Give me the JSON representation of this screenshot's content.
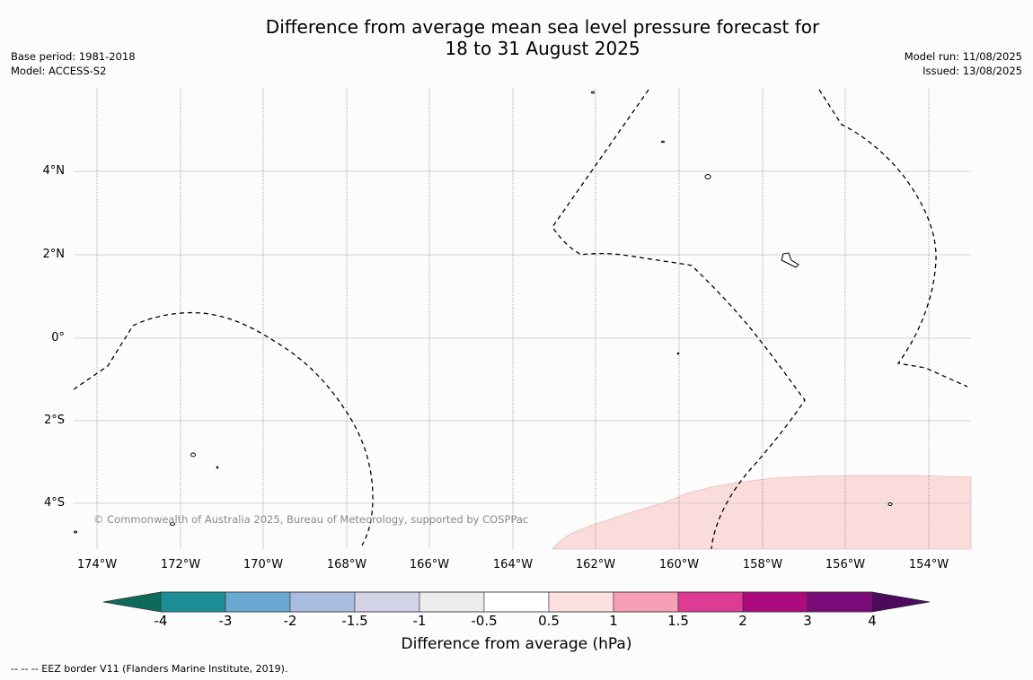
{
  "title": {
    "line1": "Difference from average mean sea level pressure forecast for",
    "line2": "18 to 31 August 2025"
  },
  "meta": {
    "base_period": "Base period: 1981-2018",
    "model": "Model: ACCESS-S2",
    "model_run": "Model run: 11/08/2025",
    "issued": "Issued: 13/08/2025"
  },
  "map": {
    "copyright": "© Commonwealth of Australia 2025, Bureau of Meteorology, supported by COSPPac",
    "lat_labels": [
      "4°N",
      "2°N",
      "0°",
      "2°S",
      "4°S"
    ],
    "lon_labels": [
      "174°W",
      "172°W",
      "170°W",
      "168°W",
      "166°W",
      "164°W",
      "162°W",
      "160°W",
      "158°W",
      "156°W",
      "154°W"
    ],
    "anomaly_fill_color": "#fadcdb",
    "anomaly_category": "0.5 to 1"
  },
  "colorbar": {
    "title": "Difference from average (hPa)",
    "ticks": [
      "-4",
      "-3",
      "-2",
      "-1.5",
      "-1",
      "-0.5",
      "0.5",
      "1",
      "1.5",
      "2",
      "3",
      "4"
    ],
    "colors": [
      "#0e6b5b",
      "#1b8e96",
      "#6aa9d1",
      "#a9bde0",
      "#d3d3e8",
      "#ececec",
      "#ffffff",
      "#fde1e0",
      "#f59fb6",
      "#de3b95",
      "#ad0a7d",
      "#7a0b78",
      "#4b0a5b"
    ]
  },
  "footnote": "--  --  -- EEZ border V11 (Flanders Marine Institute, 2019)."
}
